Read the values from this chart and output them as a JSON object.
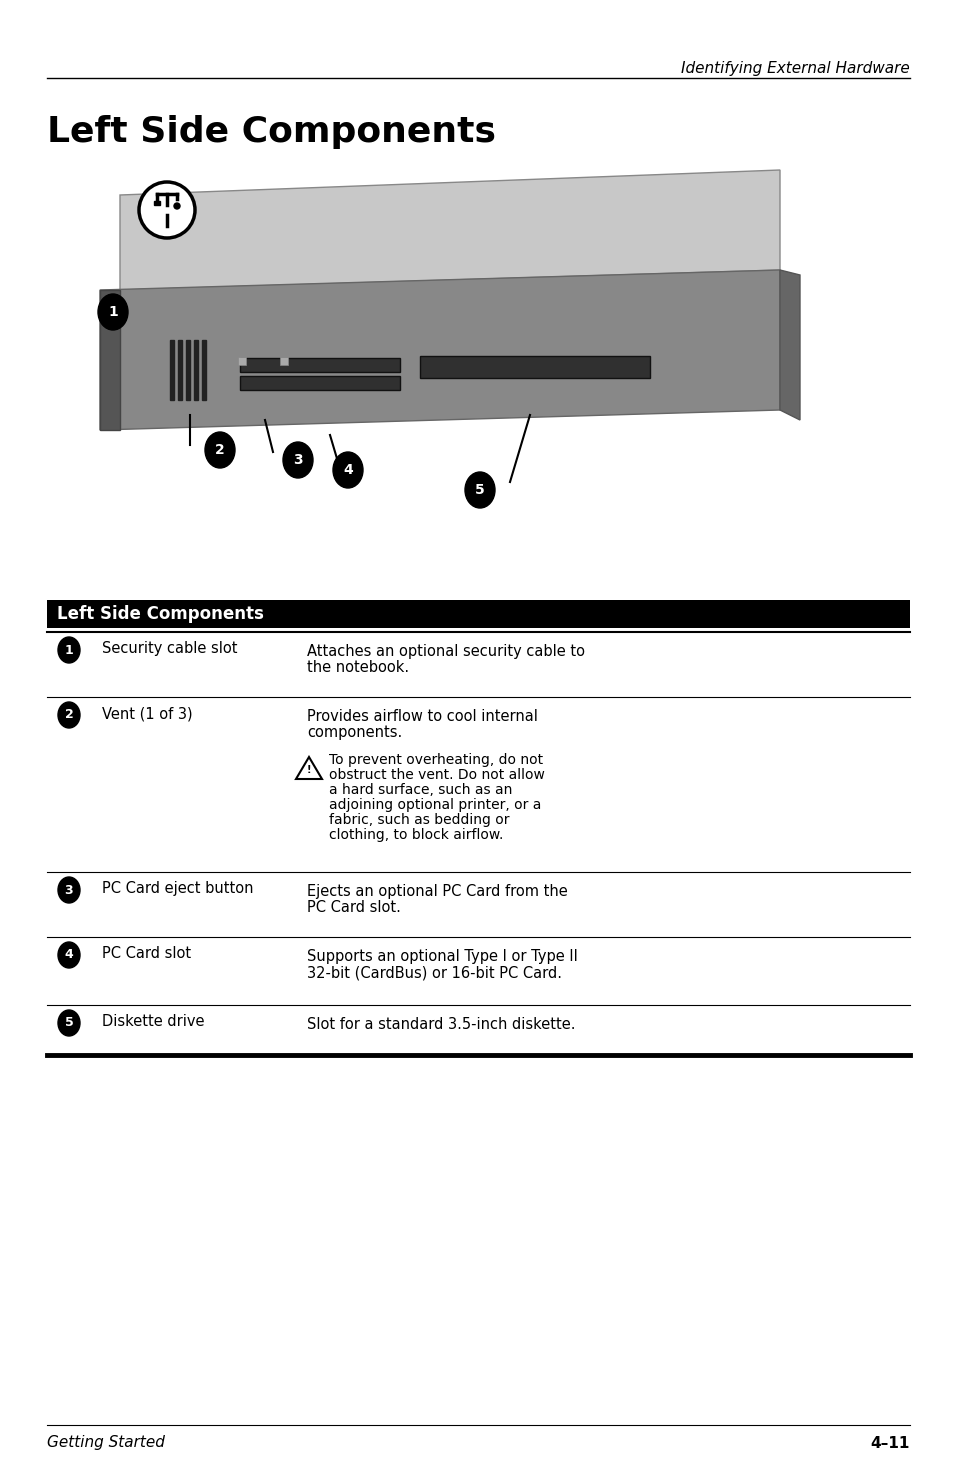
{
  "page_header": "Identifying External Hardware",
  "page_title": "Left Side Components",
  "footer_left": "Getting Started",
  "footer_right": "4–11",
  "table_header": "Left Side Components",
  "rows": [
    {
      "num": "1",
      "component": "Security cable slot",
      "description": "Attaches an optional security cable to\nthe notebook."
    },
    {
      "num": "2",
      "component": "Vent (1 of 3)",
      "description": "Provides airflow to cool internal\ncomponents.\n\n⚠ To prevent overheating, do not\nobstruct the vent. Do not allow\na hard surface, such as an\nadjoining optional printer, or a\nfabric, such as bedding or\nclothing, to block airflow."
    },
    {
      "num": "3",
      "component": "PC Card eject button",
      "description": "Ejects an optional PC Card from the\nPC Card slot."
    },
    {
      "num": "4",
      "component": "PC Card slot",
      "description": "Supports an optional Type I or Type II\n32-bit (CardBus) or 16-bit PC Card."
    },
    {
      "num": "5",
      "component": "Diskette drive",
      "description": "Slot for a standard 3.5-inch diskette."
    }
  ],
  "bg_color": "#ffffff",
  "text_color": "#000000",
  "header_line_color": "#000000",
  "table_header_bg": "#000000",
  "table_header_fg": "#ffffff"
}
